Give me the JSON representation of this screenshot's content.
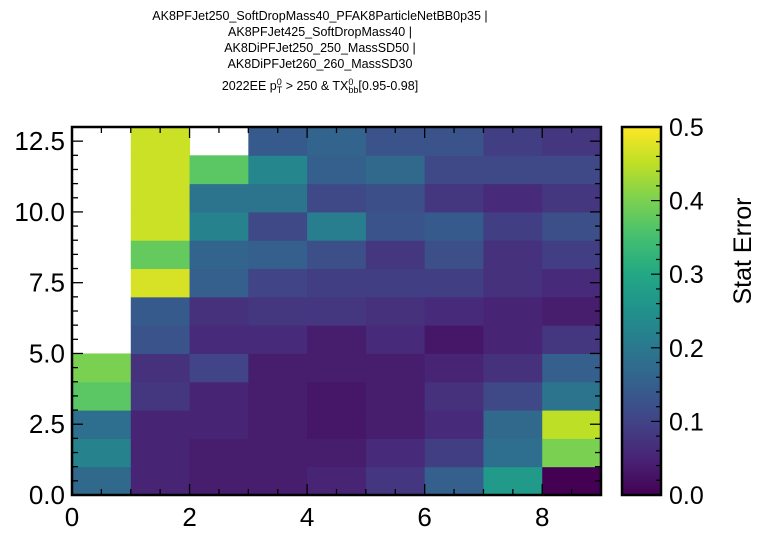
{
  "chart_data": {
    "type": "heatmap",
    "title_lines": [
      "AK8PFJet250_SoftDropMass40_PFAK8ParticleNetBB0p35 |",
      "AK8PFJet425_SoftDropMass40 |",
      "AK8DiPFJet250_250_MassSD50 |",
      "AK8DiPFJet260_260_MassSD30"
    ],
    "subtitle": {
      "prefix": "2022EE p",
      "p_sup": "0",
      "p_sub": "T",
      "middle": " > 250 & TX",
      "tx_sup": "0",
      "tx_sub": "bb",
      "suffix": "[0.95-0.98]"
    },
    "x_edges": [
      0,
      1,
      2,
      3,
      4,
      5,
      6,
      7,
      8,
      9
    ],
    "y_edges": [
      0,
      1,
      2,
      3,
      4,
      5,
      6,
      7,
      8,
      9,
      10,
      11,
      12,
      13
    ],
    "xlim": [
      0,
      9
    ],
    "ylim": [
      0,
      13
    ],
    "x_ticks": [
      0,
      2,
      4,
      6,
      8
    ],
    "x_tick_labels": [
      "0",
      "2",
      "4",
      "6",
      "8"
    ],
    "y_ticks": [
      0,
      2.5,
      5,
      7.5,
      10,
      12.5
    ],
    "y_tick_labels": [
      "0.0",
      "2.5",
      "5.0",
      "7.5",
      "10.0",
      "12.5"
    ],
    "colorbar": {
      "label": "Stat Error",
      "vmin": 0,
      "vmax": 0.5,
      "colormap": "viridis",
      "ticks": [
        0,
        0.1,
        0.2,
        0.3,
        0.4,
        0.5
      ],
      "tick_labels": [
        "0.0",
        "0.1",
        "0.2",
        "0.3",
        "0.4",
        "0.5"
      ]
    },
    "values": [
      [
        0.17,
        0.05,
        0.04,
        0.04,
        0.05,
        0.08,
        0.15,
        0.27,
        0.0
      ],
      [
        0.22,
        0.05,
        0.04,
        0.04,
        0.04,
        0.06,
        0.09,
        0.18,
        0.4
      ],
      [
        0.18,
        0.05,
        0.05,
        0.04,
        0.03,
        0.04,
        0.06,
        0.17,
        0.45
      ],
      [
        0.37,
        0.08,
        0.05,
        0.04,
        0.03,
        0.04,
        0.07,
        0.11,
        0.19
      ],
      [
        0.4,
        0.07,
        0.1,
        0.04,
        0.04,
        0.04,
        0.05,
        0.07,
        0.15
      ],
      [
        null,
        0.13,
        0.06,
        0.06,
        0.04,
        0.06,
        0.03,
        0.05,
        0.08
      ],
      [
        null,
        0.14,
        0.07,
        0.08,
        0.08,
        0.07,
        0.06,
        0.05,
        0.04
      ],
      [
        null,
        0.47,
        0.15,
        0.1,
        0.09,
        0.09,
        0.09,
        0.07,
        0.06
      ],
      [
        null,
        0.38,
        0.16,
        0.15,
        0.12,
        0.08,
        0.12,
        0.07,
        0.09
      ],
      [
        null,
        0.46,
        0.22,
        0.11,
        0.21,
        0.13,
        0.14,
        0.09,
        0.12
      ],
      [
        null,
        0.46,
        0.19,
        0.19,
        0.11,
        0.12,
        0.08,
        0.06,
        0.08
      ],
      [
        null,
        0.46,
        0.37,
        0.23,
        0.15,
        0.17,
        0.11,
        0.11,
        0.11
      ],
      [
        null,
        0.46,
        null,
        0.14,
        0.16,
        0.13,
        0.13,
        0.09,
        0.08
      ]
    ]
  }
}
